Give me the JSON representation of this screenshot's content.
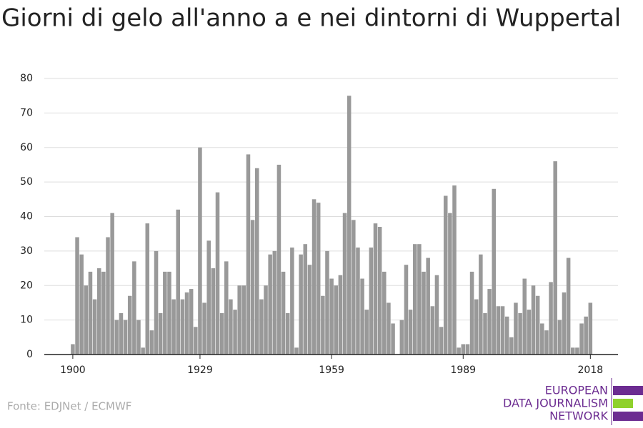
{
  "chart_data": {
    "type": "bar",
    "title": "Giorni di gelo all'anno a e nei dintorni di Wuppertal",
    "source": "Fonte: EDJNet / ECMWF",
    "logo": [
      "EUROPEAN",
      "DATA JOURNALISM",
      "NETWORK"
    ],
    "color": "#999999",
    "grid": true,
    "x": [
      1900,
      1901,
      1902,
      1903,
      1904,
      1905,
      1906,
      1907,
      1908,
      1909,
      1910,
      1911,
      1912,
      1913,
      1914,
      1915,
      1916,
      1917,
      1918,
      1919,
      1920,
      1921,
      1922,
      1923,
      1924,
      1925,
      1926,
      1927,
      1928,
      1929,
      1930,
      1931,
      1932,
      1933,
      1934,
      1935,
      1936,
      1937,
      1938,
      1939,
      1940,
      1941,
      1942,
      1943,
      1944,
      1945,
      1946,
      1947,
      1948,
      1949,
      1950,
      1951,
      1952,
      1953,
      1954,
      1955,
      1956,
      1957,
      1958,
      1959,
      1960,
      1961,
      1962,
      1963,
      1964,
      1965,
      1966,
      1967,
      1968,
      1969,
      1970,
      1971,
      1972,
      1973,
      1974,
      1975,
      1976,
      1977,
      1978,
      1979,
      1980,
      1981,
      1982,
      1983,
      1984,
      1985,
      1986,
      1987,
      1988,
      1989,
      1990,
      1991,
      1992,
      1993,
      1994,
      1995,
      1996,
      1997,
      1998,
      1999,
      2000,
      2001,
      2002,
      2003,
      2004,
      2005,
      2006,
      2007,
      2008,
      2009,
      2010,
      2011,
      2012,
      2013,
      2014,
      2015,
      2016,
      2017,
      2018
    ],
    "values": [
      3,
      34,
      29,
      20,
      24,
      16,
      25,
      24,
      34,
      41,
      10,
      12,
      10,
      17,
      27,
      10,
      2,
      38,
      7,
      30,
      12,
      24,
      24,
      16,
      42,
      16,
      18,
      19,
      8,
      60,
      15,
      33,
      25,
      47,
      12,
      27,
      16,
      13,
      20,
      20,
      58,
      39,
      54,
      16,
      20,
      29,
      30,
      55,
      24,
      12,
      31,
      2,
      29,
      32,
      26,
      45,
      44,
      17,
      30,
      22,
      20,
      23,
      41,
      75,
      39,
      31,
      22,
      13,
      31,
      38,
      37,
      24,
      15,
      9,
      0,
      10,
      26,
      13,
      32,
      32,
      24,
      28,
      14,
      23,
      8,
      46,
      41,
      49,
      2,
      3,
      3,
      24,
      16,
      29,
      12,
      19,
      48,
      14,
      14,
      11,
      5,
      15,
      12,
      22,
      13,
      20,
      17,
      9,
      7,
      21,
      56,
      10,
      18,
      28,
      2,
      2,
      9,
      11,
      15
    ],
    "xlim": [
      1893.5,
      2024.3
    ],
    "xticks": [
      1900,
      1929,
      1959,
      1989,
      2018
    ],
    "ylim": [
      0,
      80
    ],
    "yticks": [
      0,
      10,
      20,
      30,
      40,
      50,
      60,
      70,
      80
    ]
  }
}
